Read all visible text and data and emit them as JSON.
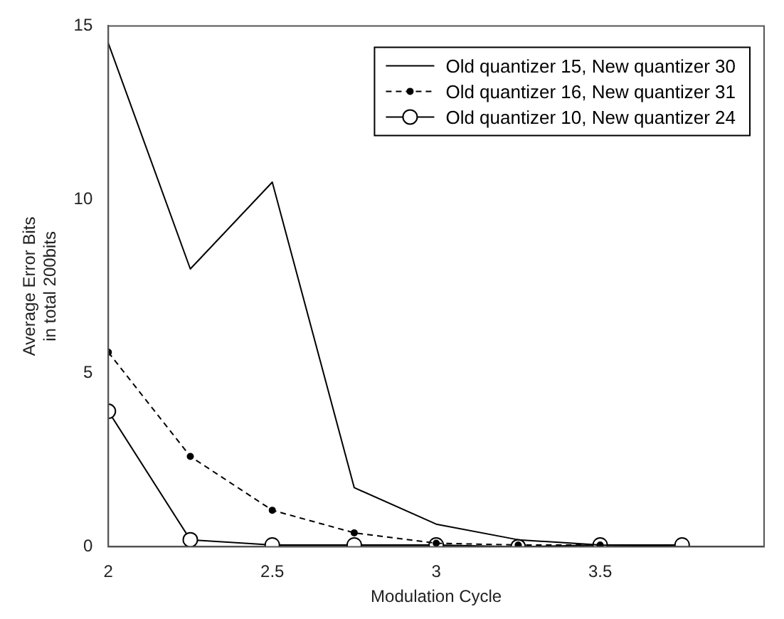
{
  "chart_data": {
    "type": "line",
    "xlabel": "Modulation Cycle",
    "ylabel": "Average Error Bits\nin total 200bits",
    "x": [
      2,
      2.25,
      2.5,
      2.75,
      3,
      3.25,
      3.5,
      3.75,
      4
    ],
    "xlim": [
      2,
      4
    ],
    "xticks": [
      2,
      2.5,
      3,
      3.5
    ],
    "ylim": [
      0,
      15
    ],
    "yticks": [
      0,
      5,
      10,
      15
    ],
    "grid": false,
    "legend": "top right",
    "series": [
      {
        "name": "Old quantizer 15, New quantizer 30",
        "color": "#000000",
        "line_style": "solid",
        "marker": "none",
        "values": [
          14.5,
          8,
          10.5,
          1.7,
          0.65,
          0.2,
          0.05,
          0,
          0
        ]
      },
      {
        "name": "Old quantizer 16, New quantizer 31",
        "color": "#000000",
        "line_style": "dashed",
        "marker": "circle",
        "x": [
          2,
          2.25,
          2.5,
          2.75,
          3,
          3.25,
          3.5
        ],
        "values": [
          5.6,
          2.6,
          1.05,
          0.4,
          0.1,
          0.05,
          0.05
        ]
      },
      {
        "name": "Old quantizer 10, New quantizer 24",
        "color": "#000000",
        "line_style": "solid",
        "marker": "circle",
        "x": [
          2,
          2.25,
          2.5,
          2.75,
          3,
          3.25,
          3.5,
          3.75
        ],
        "values": [
          3.9,
          0.2,
          0.05,
          0.05,
          0.05,
          0,
          0.05,
          0.05
        ]
      }
    ]
  }
}
